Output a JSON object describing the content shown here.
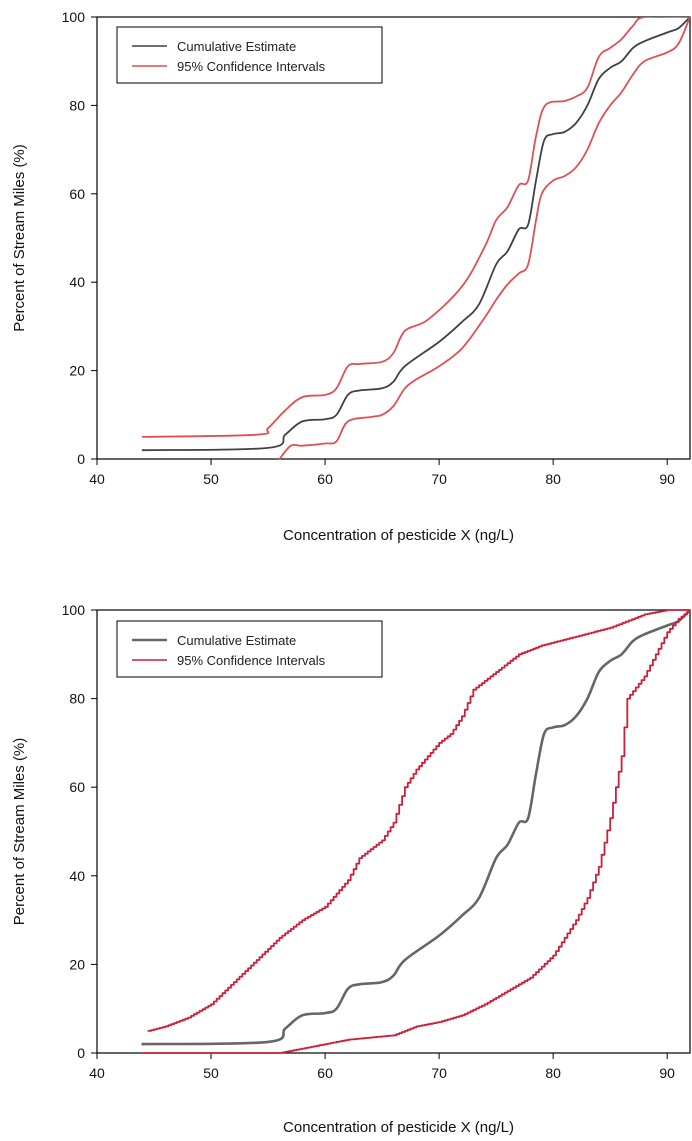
{
  "chart_data": [
    {
      "type": "line",
      "title": "",
      "xlabel": "Concentration of pesticide X (ng/L)",
      "ylabel": "Percent of Stream Miles (%)",
      "xlim": [
        40,
        92
      ],
      "ylim": [
        0,
        100
      ],
      "xticks": [
        40,
        50,
        60,
        70,
        80,
        90
      ],
      "yticks": [
        0,
        20,
        40,
        60,
        80,
        100
      ],
      "grid": false,
      "legend_position": "top-left",
      "series": [
        {
          "name": "Cumulative Estimate",
          "color": "#404040",
          "points": [
            [
              44,
              2
            ],
            [
              55,
              2.5
            ],
            [
              56.5,
              5.5
            ],
            [
              58,
              8.5
            ],
            [
              60,
              9
            ],
            [
              61,
              10
            ],
            [
              62,
              14.5
            ],
            [
              63,
              15.5
            ],
            [
              65,
              16
            ],
            [
              66,
              17.5
            ],
            [
              67,
              21
            ],
            [
              70,
              26.5
            ],
            [
              72,
              31
            ],
            [
              73.5,
              35
            ],
            [
              75,
              44
            ],
            [
              76,
              47
            ],
            [
              77,
              52
            ],
            [
              77.8,
              53
            ],
            [
              78.5,
              63
            ],
            [
              79.2,
              72
            ],
            [
              80,
              73.5
            ],
            [
              81,
              74
            ],
            [
              82,
              76
            ],
            [
              83,
              80
            ],
            [
              84,
              86
            ],
            [
              85,
              88.5
            ],
            [
              86,
              90
            ],
            [
              87,
              93
            ],
            [
              88,
              94.5
            ],
            [
              90,
              96.5
            ],
            [
              91,
              97.5
            ],
            [
              92,
              100
            ]
          ]
        },
        {
          "name": "95% Confidence Intervals",
          "color": "#e05050",
          "points": [
            [
              44,
              5
            ],
            [
              54,
              5.5
            ],
            [
              55,
              7
            ],
            [
              56.5,
              11
            ],
            [
              58,
              14
            ],
            [
              60,
              14.5
            ],
            [
              61,
              16
            ],
            [
              62,
              21
            ],
            [
              63,
              21.5
            ],
            [
              65,
              22
            ],
            [
              66,
              24
            ],
            [
              67,
              29
            ],
            [
              69,
              31.5
            ],
            [
              72,
              39
            ],
            [
              74,
              48
            ],
            [
              75,
              54
            ],
            [
              76,
              57
            ],
            [
              77,
              62
            ],
            [
              77.8,
              63
            ],
            [
              78.5,
              73
            ],
            [
              79.3,
              80
            ],
            [
              81,
              81
            ],
            [
              82,
              82
            ],
            [
              83,
              84
            ],
            [
              84,
              91
            ],
            [
              85,
              93
            ],
            [
              86,
              95
            ],
            [
              87,
              98
            ],
            [
              88,
              100
            ],
            [
              92,
              100
            ]
          ]
        },
        {
          "name": "95% Confidence Intervals",
          "color": "#e05050",
          "points": [
            [
              56,
              0
            ],
            [
              57,
              3
            ],
            [
              58,
              3
            ],
            [
              60,
              3.5
            ],
            [
              61,
              4
            ],
            [
              62,
              8.5
            ],
            [
              64,
              9.5
            ],
            [
              65,
              10
            ],
            [
              66,
              12
            ],
            [
              67,
              16
            ],
            [
              68,
              18
            ],
            [
              70,
              21
            ],
            [
              72,
              25
            ],
            [
              74,
              32
            ],
            [
              75,
              36
            ],
            [
              76,
              39.5
            ],
            [
              77,
              42
            ],
            [
              77.8,
              44
            ],
            [
              78.5,
              54
            ],
            [
              79,
              60
            ],
            [
              80,
              63
            ],
            [
              81,
              64
            ],
            [
              82,
              66
            ],
            [
              83,
              70
            ],
            [
              84,
              76
            ],
            [
              85,
              80
            ],
            [
              86,
              83
            ],
            [
              87,
              87
            ],
            [
              88,
              90
            ],
            [
              90,
              92
            ],
            [
              91,
              94
            ],
            [
              92,
              100
            ]
          ]
        }
      ]
    },
    {
      "type": "line",
      "title": "",
      "xlabel": "Concentration of pesticide X (ng/L)",
      "ylabel": "Percent of Stream Miles (%)",
      "xlim": [
        40,
        92
      ],
      "ylim": [
        0,
        100
      ],
      "xticks": [
        40,
        50,
        60,
        70,
        80,
        90
      ],
      "yticks": [
        0,
        20,
        40,
        60,
        80,
        100
      ],
      "grid": false,
      "legend_position": "top-left",
      "series": [
        {
          "name": "Cumulative Estimate",
          "color": "#666666",
          "points": [
            [
              44,
              2
            ],
            [
              55,
              2.5
            ],
            [
              56.5,
              5.5
            ],
            [
              58,
              8.5
            ],
            [
              60,
              9
            ],
            [
              61,
              10
            ],
            [
              62,
              14.5
            ],
            [
              63,
              15.5
            ],
            [
              65,
              16
            ],
            [
              66,
              17.5
            ],
            [
              67,
              21
            ],
            [
              70,
              26.5
            ],
            [
              72,
              31
            ],
            [
              73.5,
              35
            ],
            [
              75,
              44
            ],
            [
              76,
              47
            ],
            [
              77,
              52
            ],
            [
              77.8,
              53
            ],
            [
              78.5,
              63
            ],
            [
              79.2,
              72
            ],
            [
              80,
              73.5
            ],
            [
              81,
              74
            ],
            [
              82,
              76
            ],
            [
              83,
              80
            ],
            [
              84,
              86
            ],
            [
              85,
              88.5
            ],
            [
              86,
              90
            ],
            [
              87,
              93
            ],
            [
              88,
              94.5
            ],
            [
              90,
              96.5
            ],
            [
              91,
              97.5
            ],
            [
              92,
              100
            ]
          ]
        },
        {
          "name": "95% Confidence Intervals",
          "color": "#cc1f3a",
          "points": [
            [
              44,
              0
            ],
            [
              56,
              0
            ],
            [
              58,
              1
            ],
            [
              60,
              2
            ],
            [
              62,
              3
            ],
            [
              64,
              3.5
            ],
            [
              66,
              4
            ],
            [
              68,
              6
            ],
            [
              70,
              7
            ],
            [
              72,
              8.5
            ],
            [
              74,
              11
            ],
            [
              76,
              14
            ],
            [
              78,
              17
            ],
            [
              80,
              22
            ],
            [
              81,
              26
            ],
            [
              82,
              30
            ],
            [
              83,
              35
            ],
            [
              84,
              42
            ],
            [
              85,
              53
            ],
            [
              86,
              67
            ],
            [
              86.5,
              80
            ],
            [
              88,
              85
            ],
            [
              89,
              90
            ],
            [
              90,
              95
            ],
            [
              91,
              98
            ],
            [
              92,
              100
            ]
          ]
        },
        {
          "name": "95% Confidence Intervals",
          "color": "#cc1f3a",
          "points": [
            [
              44.5,
              5
            ],
            [
              46,
              6
            ],
            [
              48,
              8
            ],
            [
              50,
              11
            ],
            [
              52,
              16
            ],
            [
              54,
              21
            ],
            [
              56,
              26
            ],
            [
              58,
              30
            ],
            [
              60,
              33
            ],
            [
              62,
              39
            ],
            [
              63,
              44
            ],
            [
              65,
              48
            ],
            [
              66,
              52
            ],
            [
              67,
              60
            ],
            [
              68,
              64
            ],
            [
              70,
              70
            ],
            [
              71,
              72
            ],
            [
              72,
              76
            ],
            [
              73,
              82
            ],
            [
              75,
              86
            ],
            [
              77,
              90
            ],
            [
              79,
              92
            ],
            [
              82,
              94
            ],
            [
              85,
              96
            ],
            [
              88,
              99
            ],
            [
              90,
              100
            ],
            [
              92,
              100
            ]
          ]
        }
      ]
    }
  ]
}
